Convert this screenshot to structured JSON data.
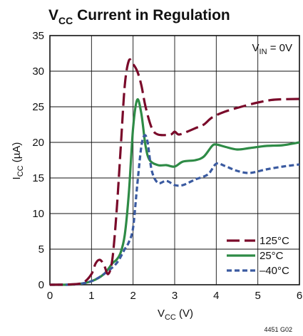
{
  "chart_data": {
    "type": "line",
    "title": {
      "main": "V",
      "sub": "CC",
      "rest": " Current in Regulation"
    },
    "xlabel": {
      "main": "V",
      "sub": "CC",
      "rest": " (V)"
    },
    "ylabel": {
      "main": "I",
      "sub": "CC",
      "rest": " (µA)"
    },
    "xlim": [
      0,
      6
    ],
    "ylim": [
      0,
      35
    ],
    "xticks": [
      "0",
      "1",
      "2",
      "3",
      "4",
      "5",
      "6"
    ],
    "yticks": [
      "0",
      "5",
      "10",
      "15",
      "20",
      "25",
      "30",
      "35"
    ],
    "grid": true,
    "annotation": {
      "main": "V",
      "sub": "IN",
      "rest": " = 0V"
    },
    "figure_id": "4451 G02",
    "legend_position": "bottom-right",
    "series": [
      {
        "name": "125°C",
        "color": "#7a0a2a",
        "dash": "long-dash",
        "points": [
          [
            0,
            0
          ],
          [
            0.5,
            0.05
          ],
          [
            0.8,
            0.3
          ],
          [
            1.0,
            1.5
          ],
          [
            1.1,
            3.0
          ],
          [
            1.2,
            3.5
          ],
          [
            1.3,
            2.8
          ],
          [
            1.4,
            1.5
          ],
          [
            1.5,
            3.5
          ],
          [
            1.6,
            10
          ],
          [
            1.7,
            19
          ],
          [
            1.8,
            28
          ],
          [
            1.9,
            31.5
          ],
          [
            2.0,
            31
          ],
          [
            2.1,
            30
          ],
          [
            2.2,
            28
          ],
          [
            2.3,
            25
          ],
          [
            2.45,
            22
          ],
          [
            2.6,
            21.1
          ],
          [
            2.9,
            21.1
          ],
          [
            3.0,
            21.5
          ],
          [
            3.1,
            21.1
          ],
          [
            3.3,
            21.5
          ],
          [
            3.5,
            22
          ],
          [
            3.7,
            22.5
          ],
          [
            3.9,
            23.5
          ],
          [
            4.2,
            24.3
          ],
          [
            4.6,
            25
          ],
          [
            5.0,
            25.6
          ],
          [
            5.4,
            26
          ],
          [
            6.0,
            26.1
          ]
        ]
      },
      {
        "name": "25°C",
        "color": "#2e8b46",
        "dash": "solid",
        "points": [
          [
            0,
            0
          ],
          [
            0.6,
            0.05
          ],
          [
            1.0,
            0.5
          ],
          [
            1.3,
            1.5
          ],
          [
            1.5,
            3.0
          ],
          [
            1.6,
            3.5
          ],
          [
            1.7,
            4.5
          ],
          [
            1.8,
            7
          ],
          [
            1.9,
            13
          ],
          [
            2.0,
            22
          ],
          [
            2.1,
            26
          ],
          [
            2.2,
            24
          ],
          [
            2.3,
            19.5
          ],
          [
            2.4,
            17.5
          ],
          [
            2.6,
            16.8
          ],
          [
            2.8,
            16.8
          ],
          [
            3.0,
            16.6
          ],
          [
            3.2,
            17.3
          ],
          [
            3.5,
            17.5
          ],
          [
            3.7,
            18.0
          ],
          [
            3.9,
            19.5
          ],
          [
            4.0,
            19.7
          ],
          [
            4.2,
            19.4
          ],
          [
            4.5,
            19.0
          ],
          [
            4.8,
            19.2
          ],
          [
            5.2,
            19.5
          ],
          [
            5.6,
            19.6
          ],
          [
            6.0,
            20
          ]
        ]
      },
      {
        "name": "–40°C",
        "color": "#3a5aa0",
        "dash": "short-dash",
        "points": [
          [
            0,
            0
          ],
          [
            0.6,
            0.05
          ],
          [
            1.0,
            0.5
          ],
          [
            1.3,
            1.5
          ],
          [
            1.6,
            3.0
          ],
          [
            1.8,
            5
          ],
          [
            1.9,
            6
          ],
          [
            2.0,
            8
          ],
          [
            2.1,
            14
          ],
          [
            2.2,
            19.5
          ],
          [
            2.28,
            21
          ],
          [
            2.35,
            20
          ],
          [
            2.45,
            16
          ],
          [
            2.6,
            14.3
          ],
          [
            2.8,
            14.6
          ],
          [
            3.0,
            14.0
          ],
          [
            3.2,
            14.0
          ],
          [
            3.5,
            14.8
          ],
          [
            3.8,
            15.5
          ],
          [
            4.0,
            17
          ],
          [
            4.2,
            16.7
          ],
          [
            4.5,
            16.0
          ],
          [
            4.8,
            15.7
          ],
          [
            5.2,
            16.2
          ],
          [
            5.6,
            16.6
          ],
          [
            6.0,
            16.9
          ]
        ]
      }
    ]
  }
}
